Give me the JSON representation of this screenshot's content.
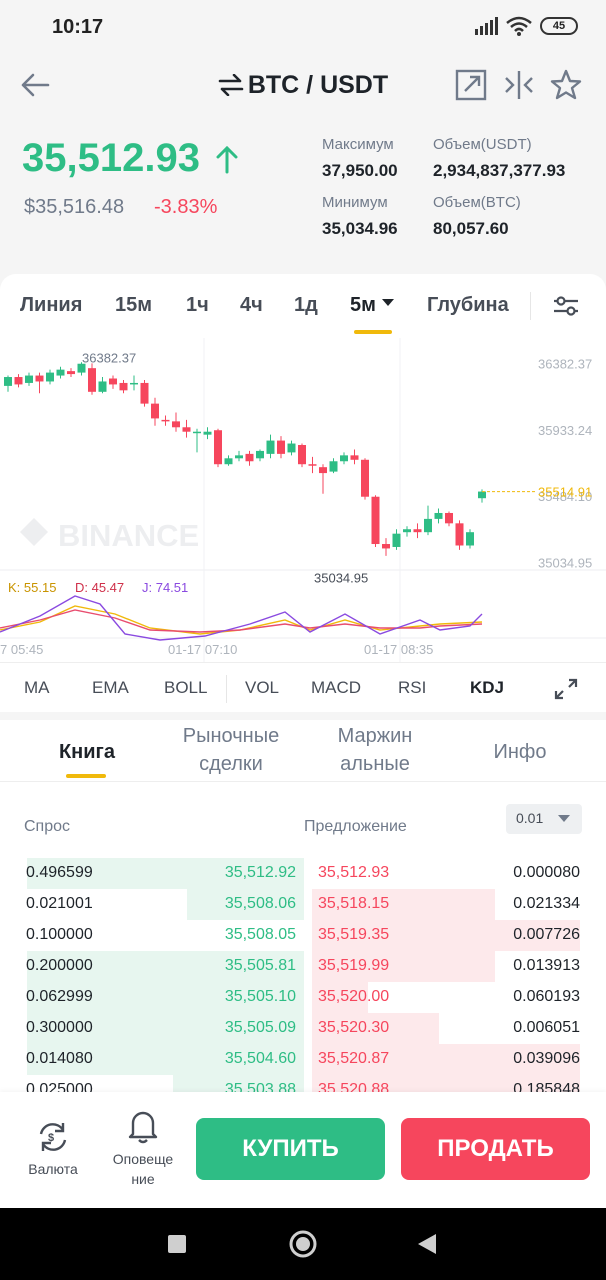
{
  "status": {
    "time": "10:17",
    "battery": "45"
  },
  "header": {
    "title": "BTC / USDT"
  },
  "summary": {
    "price": "35,512.93",
    "usd_price": "$35,516.48",
    "change": "-3.83%",
    "stats": [
      {
        "label": "Максимум",
        "value": "37,950.00"
      },
      {
        "label": "Объем(USDT)",
        "value": "2,934,837,377.93"
      },
      {
        "label": "Минимум",
        "value": "35,034.96"
      },
      {
        "label": "Объем(BTC)",
        "value": "80,057.60"
      }
    ]
  },
  "timeframes": [
    "Линия",
    "15м",
    "1ч",
    "4ч",
    "1д",
    "5м",
    "Глубина"
  ],
  "chart_data": {
    "type": "candlestick",
    "y_ticks": [
      "36382.37",
      "35933.24",
      "35484.10",
      "35034.95"
    ],
    "x_ticks": [
      "7 05:45",
      "01-17 07:10",
      "01-17 08:35"
    ],
    "current_price_label": "35514.91",
    "high_label": "36382.37",
    "low_label": "35034.95",
    "watermark": "BINANCE",
    "kdj": {
      "k": "K: 55.15",
      "d": "D: 45.47",
      "j": "J: 74.51"
    },
    "ylim": [
      34930,
      36500
    ],
    "candles": [
      [
        36230,
        36290,
        36190,
        36300
      ],
      [
        36290,
        36240,
        36220,
        36310
      ],
      [
        36250,
        36300,
        36230,
        36320
      ],
      [
        36300,
        36260,
        36180,
        36320
      ],
      [
        36260,
        36320,
        36240,
        36340
      ],
      [
        36300,
        36340,
        36280,
        36360
      ],
      [
        36330,
        36310,
        36290,
        36350
      ],
      [
        36320,
        36380,
        36300,
        36390
      ],
      [
        36350,
        36190,
        36170,
        36382
      ],
      [
        36190,
        36260,
        36180,
        36290
      ],
      [
        36280,
        36240,
        36210,
        36300
      ],
      [
        36250,
        36200,
        36180,
        36270
      ],
      [
        36240,
        36250,
        36200,
        36300
      ],
      [
        36250,
        36110,
        36090,
        36270
      ],
      [
        36110,
        36010,
        35960,
        36150
      ],
      [
        36000,
        35990,
        35960,
        36030
      ],
      [
        35990,
        35950,
        35920,
        36050
      ],
      [
        35950,
        35920,
        35880,
        36000
      ],
      [
        35920,
        35920,
        35780,
        35940
      ],
      [
        35900,
        35920,
        35870,
        35950
      ],
      [
        35930,
        35700,
        35680,
        35940
      ],
      [
        35700,
        35740,
        35690,
        35760
      ],
      [
        35740,
        35760,
        35720,
        35790
      ],
      [
        35770,
        35720,
        35690,
        35790
      ],
      [
        35740,
        35790,
        35720,
        35800
      ],
      [
        35770,
        35860,
        35740,
        35900
      ],
      [
        35860,
        35770,
        35740,
        35890
      ],
      [
        35780,
        35840,
        35760,
        35860
      ],
      [
        35830,
        35700,
        35680,
        35840
      ],
      [
        35700,
        35690,
        35640,
        35750
      ],
      [
        35680,
        35640,
        35500,
        35700
      ],
      [
        35650,
        35720,
        35640,
        35740
      ],
      [
        35720,
        35760,
        35700,
        35780
      ],
      [
        35760,
        35730,
        35700,
        35800
      ],
      [
        35730,
        35480,
        35460,
        35740
      ],
      [
        35480,
        35160,
        35140,
        35490
      ],
      [
        35160,
        35130,
        35080,
        35200
      ],
      [
        35140,
        35230,
        35120,
        35260
      ],
      [
        35240,
        35260,
        35210,
        35280
      ],
      [
        35260,
        35240,
        35200,
        35300
      ],
      [
        35240,
        35330,
        35220,
        35420
      ],
      [
        35330,
        35370,
        35300,
        35400
      ],
      [
        35370,
        35300,
        35280,
        35380
      ],
      [
        35300,
        35150,
        35120,
        35320
      ],
      [
        35150,
        35240,
        35130,
        35260
      ],
      [
        35470,
        35515,
        35440,
        35530
      ]
    ]
  },
  "indicators": [
    "MA",
    "EMA",
    "BOLL",
    "VOL",
    "MACD",
    "RSI",
    "KDJ"
  ],
  "book_tabs": [
    "Книга",
    "Рыночные сделки",
    "Маржинальные",
    "Инфо"
  ],
  "book_tab_lines": [
    [
      "Книга"
    ],
    [
      "Рыночные",
      "сделки"
    ],
    [
      "Маржин",
      "альные"
    ],
    [
      "Инфо"
    ]
  ],
  "book": {
    "bid_label": "Спрос",
    "ask_label": "Предложение",
    "precision": "0.01",
    "rows": [
      {
        "bq": "0.496599",
        "bp": "35,512.92",
        "ap": "35,512.93",
        "aq": "0.000080",
        "bd": 0.95,
        "ad": 0.0
      },
      {
        "bq": "0.021001",
        "bp": "35,508.06",
        "ap": "35,518.15",
        "aq": "0.021334",
        "bd": 0.4,
        "ad": 0.65
      },
      {
        "bq": "0.100000",
        "bp": "35,508.05",
        "ap": "35,519.35",
        "aq": "0.007726",
        "bd": 0.0,
        "ad": 0.95
      },
      {
        "bq": "0.200000",
        "bp": "35,505.81",
        "ap": "35,519.99",
        "aq": "0.013913",
        "bd": 0.95,
        "ad": 0.65
      },
      {
        "bq": "0.062999",
        "bp": "35,505.10",
        "ap": "35,520.00",
        "aq": "0.060193",
        "bd": 0.95,
        "ad": 0.2
      },
      {
        "bq": "0.300000",
        "bp": "35,505.09",
        "ap": "35,520.30",
        "aq": "0.006051",
        "bd": 0.95,
        "ad": 0.45
      },
      {
        "bq": "0.014080",
        "bp": "35,504.60",
        "ap": "35,520.87",
        "aq": "0.039096",
        "bd": 0.95,
        "ad": 0.95
      },
      {
        "bq": "0.025000",
        "bp": "35,503.88",
        "ap": "35,520.88",
        "aq": "0.185848",
        "bd": 0.45,
        "ad": 0.95
      }
    ]
  },
  "bottom": {
    "currency_label": "Валюта",
    "alert_line1": "Оповеще",
    "alert_line2": "ние",
    "buy_label": "КУПИТЬ",
    "sell_label": "ПРОДАТЬ"
  }
}
